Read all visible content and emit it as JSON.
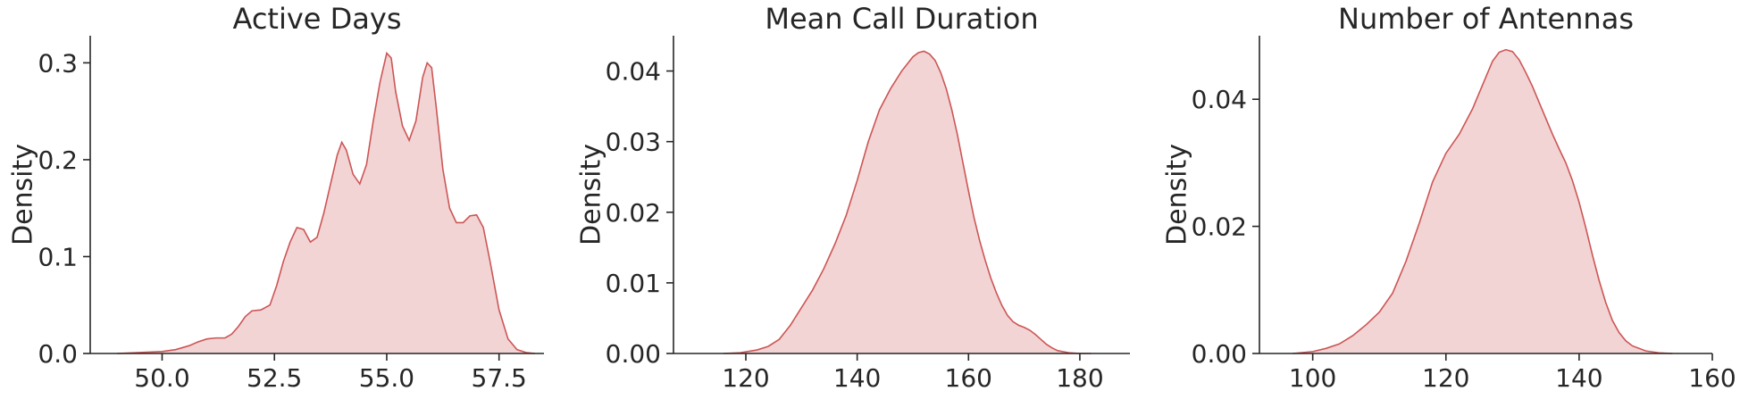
{
  "chart_data": [
    {
      "type": "area",
      "title": "Active Days",
      "ylabel": "Density",
      "xlabel": "",
      "xlim": [
        48.4,
        58.5
      ],
      "ylim": [
        0,
        0.328
      ],
      "xticks": [
        50.0,
        52.5,
        55.0,
        57.5
      ],
      "xtick_labels": [
        "50.0",
        "52.5",
        "55.0",
        "57.5"
      ],
      "yticks": [
        0.0,
        0.1,
        0.2,
        0.3
      ],
      "ytick_labels": [
        "0.0",
        "0.1",
        "0.2",
        "0.3"
      ],
      "color": "#cd5555",
      "fill_color": "#f2d4d4",
      "x": [
        49.0,
        49.5,
        50.0,
        50.3,
        50.6,
        50.8,
        51.0,
        51.2,
        51.4,
        51.55,
        51.7,
        51.85,
        52.0,
        52.2,
        52.4,
        52.55,
        52.7,
        52.85,
        53.0,
        53.15,
        53.3,
        53.45,
        53.6,
        53.75,
        53.9,
        54.0,
        54.1,
        54.25,
        54.4,
        54.55,
        54.7,
        54.85,
        55.0,
        55.1,
        55.2,
        55.35,
        55.5,
        55.65,
        55.8,
        55.9,
        56.0,
        56.1,
        56.25,
        56.4,
        56.55,
        56.7,
        56.85,
        57.0,
        57.15,
        57.3,
        57.5,
        57.7,
        57.9,
        58.1,
        58.3
      ],
      "y": [
        0.0,
        0.001,
        0.002,
        0.004,
        0.008,
        0.012,
        0.015,
        0.016,
        0.016,
        0.02,
        0.028,
        0.038,
        0.044,
        0.045,
        0.05,
        0.07,
        0.095,
        0.115,
        0.13,
        0.128,
        0.115,
        0.12,
        0.145,
        0.175,
        0.205,
        0.218,
        0.21,
        0.185,
        0.175,
        0.195,
        0.24,
        0.28,
        0.31,
        0.305,
        0.27,
        0.235,
        0.22,
        0.24,
        0.285,
        0.3,
        0.295,
        0.255,
        0.19,
        0.15,
        0.135,
        0.135,
        0.142,
        0.143,
        0.13,
        0.095,
        0.045,
        0.015,
        0.004,
        0.001,
        0.0
      ]
    },
    {
      "type": "area",
      "title": "Mean Call Duration",
      "ylabel": "Density",
      "xlabel": "",
      "xlim": [
        107,
        189
      ],
      "ylim": [
        0,
        0.045
      ],
      "xticks": [
        120,
        140,
        160,
        180
      ],
      "xtick_labels": [
        "120",
        "140",
        "160",
        "180"
      ],
      "yticks": [
        0.0,
        0.01,
        0.02,
        0.03,
        0.04
      ],
      "ytick_labels": [
        "0.00",
        "0.01",
        "0.02",
        "0.03",
        "0.04"
      ],
      "color": "#cd5555",
      "fill_color": "#f2d4d4",
      "x": [
        116,
        119,
        122,
        124,
        126,
        128,
        130,
        132,
        134,
        136,
        138,
        140,
        142,
        144,
        146,
        148,
        150,
        151,
        152,
        153,
        154,
        155,
        156,
        157,
        158,
        159,
        160,
        161,
        162,
        163,
        164,
        165,
        166,
        167,
        168,
        169,
        170,
        171,
        172,
        173,
        174,
        175,
        176,
        178,
        180,
        182
      ],
      "y": [
        0.0,
        0.0001,
        0.0005,
        0.001,
        0.002,
        0.004,
        0.0065,
        0.009,
        0.012,
        0.0155,
        0.0195,
        0.0245,
        0.03,
        0.0345,
        0.0375,
        0.04,
        0.042,
        0.0426,
        0.0428,
        0.0424,
        0.0415,
        0.0398,
        0.0375,
        0.0345,
        0.031,
        0.027,
        0.023,
        0.0192,
        0.016,
        0.0132,
        0.0107,
        0.0086,
        0.0068,
        0.0054,
        0.0045,
        0.004,
        0.0037,
        0.0033,
        0.0027,
        0.002,
        0.0013,
        0.0008,
        0.0004,
        0.0001,
        0.0,
        0.0
      ]
    },
    {
      "type": "area",
      "title": "Number of Antennas",
      "ylabel": "Density",
      "xlabel": "",
      "xlim": [
        92,
        160
      ],
      "ylim": [
        0,
        0.05
      ],
      "xticks": [
        100,
        120,
        140,
        160
      ],
      "xtick_labels": [
        "100",
        "120",
        "140",
        "160"
      ],
      "yticks": [
        0.0,
        0.02,
        0.04
      ],
      "ytick_labels": [
        "0.00",
        "0.02",
        "0.04"
      ],
      "color": "#cd5555",
      "fill_color": "#f2d4d4",
      "x": [
        97,
        100,
        102,
        104,
        106,
        108,
        110,
        112,
        114,
        116,
        118,
        120,
        122,
        124,
        125,
        126,
        127,
        128,
        129,
        130,
        131,
        132,
        133,
        134,
        135,
        136,
        137,
        138,
        139,
        140,
        141,
        142,
        143,
        144,
        145,
        146,
        147,
        148,
        150,
        152,
        154
      ],
      "y": [
        0.0,
        0.0003,
        0.0008,
        0.0015,
        0.0028,
        0.0045,
        0.0065,
        0.0095,
        0.0145,
        0.0205,
        0.027,
        0.0315,
        0.0345,
        0.0385,
        0.041,
        0.0435,
        0.046,
        0.0474,
        0.0478,
        0.0475,
        0.0462,
        0.0442,
        0.042,
        0.0395,
        0.037,
        0.0345,
        0.0322,
        0.03,
        0.0272,
        0.0238,
        0.0198,
        0.0155,
        0.0115,
        0.008,
        0.0052,
        0.0033,
        0.002,
        0.0012,
        0.0004,
        0.0001,
        0.0
      ]
    }
  ]
}
